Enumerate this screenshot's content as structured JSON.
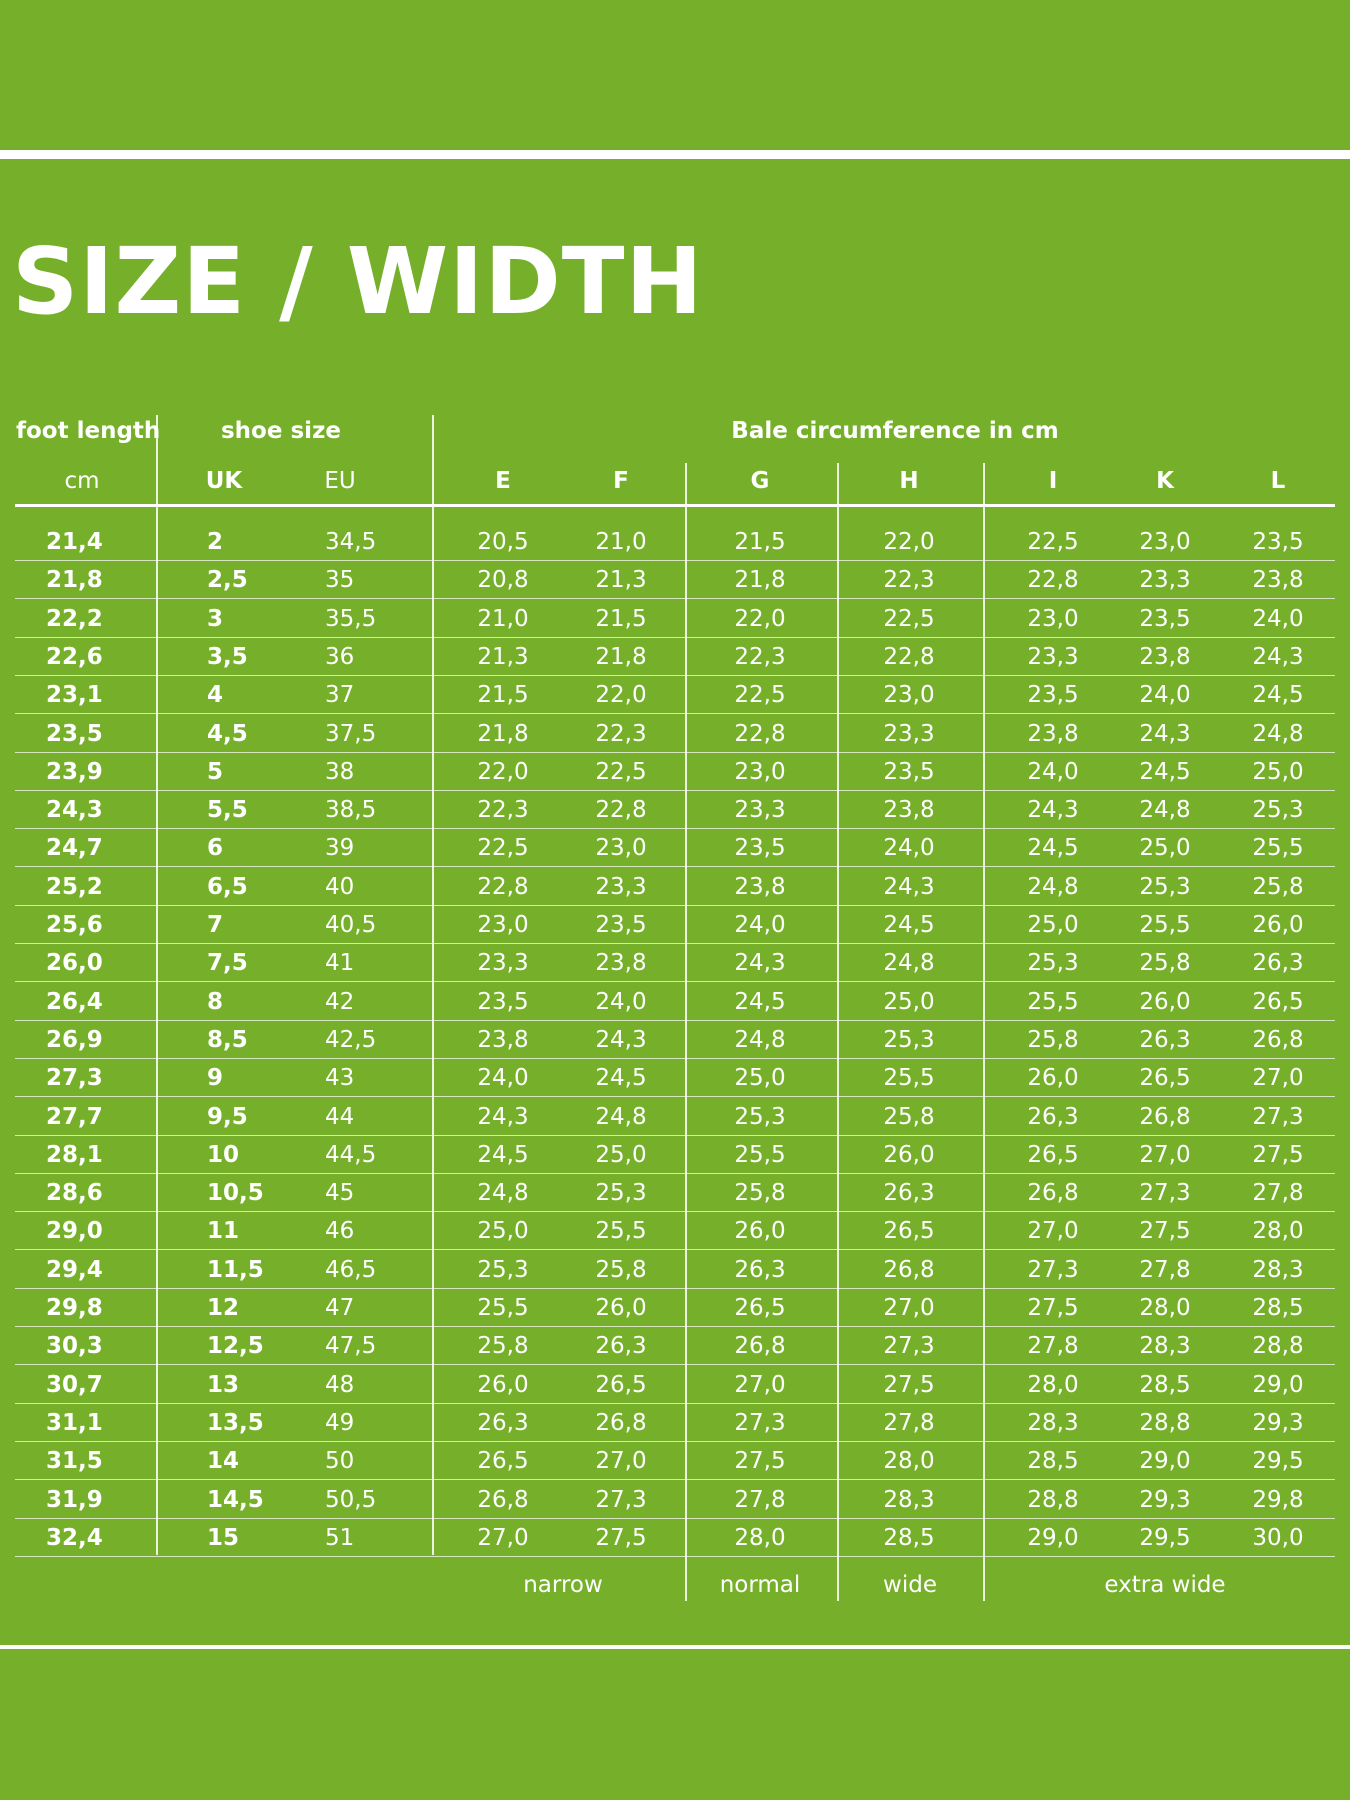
{
  "title": "SIZE / WIDTH",
  "headers": {
    "foot_length": "foot length",
    "shoe_size": "shoe size",
    "bale": "Bale circumference in cm",
    "cm": "cm",
    "uk": "UK",
    "eu": "EU",
    "widths": [
      "E",
      "F",
      "G",
      "H",
      "I",
      "K",
      "L"
    ]
  },
  "rows": [
    [
      "21,4",
      "2",
      "34,5",
      "20,5",
      "21,0",
      "21,5",
      "22,0",
      "22,5",
      "23,0",
      "23,5"
    ],
    [
      "21,8",
      "2,5",
      "35",
      "20,8",
      "21,3",
      "21,8",
      "22,3",
      "22,8",
      "23,3",
      "23,8"
    ],
    [
      "22,2",
      "3",
      "35,5",
      "21,0",
      "21,5",
      "22,0",
      "22,5",
      "23,0",
      "23,5",
      "24,0"
    ],
    [
      "22,6",
      "3,5",
      "36",
      "21,3",
      "21,8",
      "22,3",
      "22,8",
      "23,3",
      "23,8",
      "24,3"
    ],
    [
      "23,1",
      "4",
      "37",
      "21,5",
      "22,0",
      "22,5",
      "23,0",
      "23,5",
      "24,0",
      "24,5"
    ],
    [
      "23,5",
      "4,5",
      "37,5",
      "21,8",
      "22,3",
      "22,8",
      "23,3",
      "23,8",
      "24,3",
      "24,8"
    ],
    [
      "23,9",
      "5",
      "38",
      "22,0",
      "22,5",
      "23,0",
      "23,5",
      "24,0",
      "24,5",
      "25,0"
    ],
    [
      "24,3",
      "5,5",
      "38,5",
      "22,3",
      "22,8",
      "23,3",
      "23,8",
      "24,3",
      "24,8",
      "25,3"
    ],
    [
      "24,7",
      "6",
      "39",
      "22,5",
      "23,0",
      "23,5",
      "24,0",
      "24,5",
      "25,0",
      "25,5"
    ],
    [
      "25,2",
      "6,5",
      "40",
      "22,8",
      "23,3",
      "23,8",
      "24,3",
      "24,8",
      "25,3",
      "25,8"
    ],
    [
      "25,6",
      "7",
      "40,5",
      "23,0",
      "23,5",
      "24,0",
      "24,5",
      "25,0",
      "25,5",
      "26,0"
    ],
    [
      "26,0",
      "7,5",
      "41",
      "23,3",
      "23,8",
      "24,3",
      "24,8",
      "25,3",
      "25,8",
      "26,3"
    ],
    [
      "26,4",
      "8",
      "42",
      "23,5",
      "24,0",
      "24,5",
      "25,0",
      "25,5",
      "26,0",
      "26,5"
    ],
    [
      "26,9",
      "8,5",
      "42,5",
      "23,8",
      "24,3",
      "24,8",
      "25,3",
      "25,8",
      "26,3",
      "26,8"
    ],
    [
      "27,3",
      "9",
      "43",
      "24,0",
      "24,5",
      "25,0",
      "25,5",
      "26,0",
      "26,5",
      "27,0"
    ],
    [
      "27,7",
      "9,5",
      "44",
      "24,3",
      "24,8",
      "25,3",
      "25,8",
      "26,3",
      "26,8",
      "27,3"
    ],
    [
      "28,1",
      "10",
      "44,5",
      "24,5",
      "25,0",
      "25,5",
      "26,0",
      "26,5",
      "27,0",
      "27,5"
    ],
    [
      "28,6",
      "10,5",
      "45",
      "24,8",
      "25,3",
      "25,8",
      "26,3",
      "26,8",
      "27,3",
      "27,8"
    ],
    [
      "29,0",
      "11",
      "46",
      "25,0",
      "25,5",
      "26,0",
      "26,5",
      "27,0",
      "27,5",
      "28,0"
    ],
    [
      "29,4",
      "11,5",
      "46,5",
      "25,3",
      "25,8",
      "26,3",
      "26,8",
      "27,3",
      "27,8",
      "28,3"
    ],
    [
      "29,8",
      "12",
      "47",
      "25,5",
      "26,0",
      "26,5",
      "27,0",
      "27,5",
      "28,0",
      "28,5"
    ],
    [
      "30,3",
      "12,5",
      "47,5",
      "25,8",
      "26,3",
      "26,8",
      "27,3",
      "27,8",
      "28,3",
      "28,8"
    ],
    [
      "30,7",
      "13",
      "48",
      "26,0",
      "26,5",
      "27,0",
      "27,5",
      "28,0",
      "28,5",
      "29,0"
    ],
    [
      "31,1",
      "13,5",
      "49",
      "26,3",
      "26,8",
      "27,3",
      "27,8",
      "28,3",
      "28,8",
      "29,3"
    ],
    [
      "31,5",
      "14",
      "50",
      "26,5",
      "27,0",
      "27,5",
      "28,0",
      "28,5",
      "29,0",
      "29,5"
    ],
    [
      "31,9",
      "14,5",
      "50,5",
      "26,8",
      "27,3",
      "27,8",
      "28,3",
      "28,8",
      "29,3",
      "29,8"
    ],
    [
      "32,4",
      "15",
      "51",
      "27,0",
      "27,5",
      "28,0",
      "28,5",
      "29,0",
      "29,5",
      "30,0"
    ]
  ],
  "footer": {
    "narrow": "narrow",
    "normal": "normal",
    "wide": "wide",
    "extra_wide": "extra wide"
  },
  "colors": {
    "background": "#76b02a",
    "foreground": "#ffffff"
  }
}
